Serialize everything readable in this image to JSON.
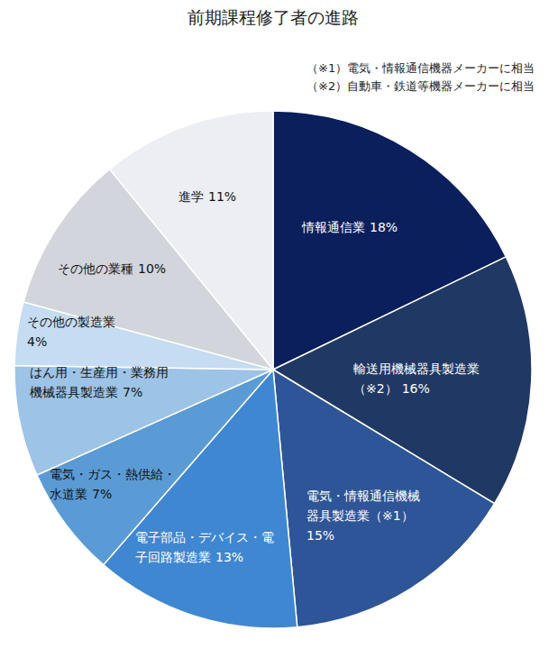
{
  "chart_data": {
    "type": "pie",
    "title": "前期課程修了者の進路",
    "annotations": [
      "（※1）電気・情報通信機器メーカーに相当",
      "（※2）自動車・鉄道等機器メーカーに相当"
    ],
    "categories": [
      "情報通信業",
      "輸送用機械器具製造業（※2）",
      "電気・情報通信機械器具製造業（※1）",
      "電子部品・デバイス・電子回路製造業",
      "電気・ガス・熱供給・水道業",
      "はん用・生産用・業務用機械器具製造業",
      "その他の製造業",
      "その他の業種",
      "進学"
    ],
    "values": [
      18,
      16,
      15,
      13,
      7,
      7,
      4,
      10,
      11
    ],
    "value_labels": [
      "18%",
      "16%",
      "15%",
      "13%",
      "7%",
      "7%",
      "4%",
      "10%",
      "11%"
    ],
    "colors": [
      "#0b1f5c",
      "#203864",
      "#2e5597",
      "#3f87d1",
      "#5b9bd5",
      "#9dc3e6",
      "#c5dcf2",
      "#d3d5dc",
      "#eceef4"
    ],
    "data_labels": true
  }
}
